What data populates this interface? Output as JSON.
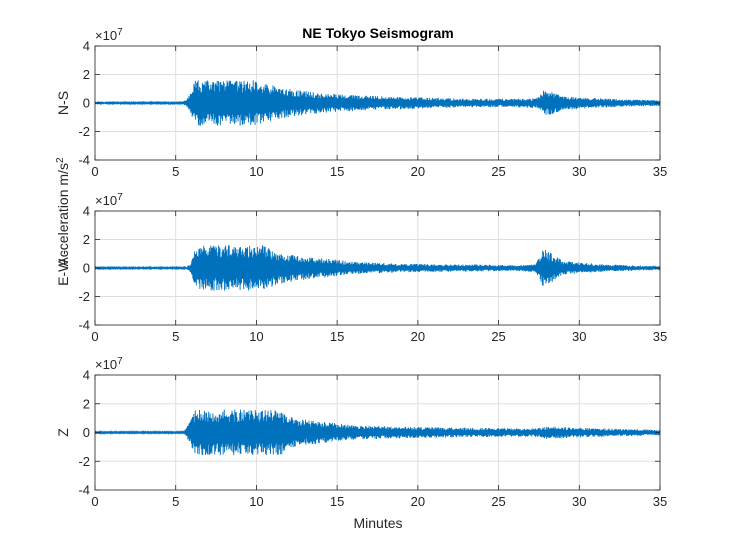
{
  "chart_data": {
    "type": "line",
    "title": "NE Tokyo Seismogram",
    "xlabel": "Minutes",
    "shared_ylabel": "Acceleration  m/s²",
    "xlim": [
      0,
      35
    ],
    "ylim": [
      -4,
      4
    ],
    "xticks": [
      0,
      5,
      10,
      15,
      20,
      25,
      30,
      35
    ],
    "yticks": [
      -4,
      -2,
      0,
      2,
      4
    ],
    "y_exponent": "×10",
    "y_exponent_power": "7",
    "grid": true,
    "line_color": "#0072BD",
    "series": [
      {
        "name": "N-S",
        "ylabel": "N-S",
        "envelope": [
          [
            0,
            0.05
          ],
          [
            5.4,
            0.05
          ],
          [
            5.6,
            0.2
          ],
          [
            5.9,
            0.7
          ],
          [
            6.2,
            1.6
          ],
          [
            9.8,
            1.6
          ],
          [
            10.8,
            1.3
          ],
          [
            12,
            1.0
          ],
          [
            14,
            0.7
          ],
          [
            17,
            0.5
          ],
          [
            20,
            0.4
          ],
          [
            23,
            0.3
          ],
          [
            26,
            0.3
          ],
          [
            27.4,
            0.35
          ],
          [
            27.8,
            0.9
          ],
          [
            28.3,
            0.8
          ],
          [
            29,
            0.5
          ],
          [
            31,
            0.35
          ],
          [
            33,
            0.25
          ],
          [
            35,
            0.2
          ]
        ]
      },
      {
        "name": "E-W",
        "ylabel": "E-W  -",
        "envelope": [
          [
            0,
            0.05
          ],
          [
            5.6,
            0.05
          ],
          [
            5.9,
            0.3
          ],
          [
            6.2,
            1.4
          ],
          [
            6.5,
            1.6
          ],
          [
            10.5,
            1.6
          ],
          [
            11.2,
            1.2
          ],
          [
            12.5,
            0.9
          ],
          [
            14,
            0.7
          ],
          [
            16,
            0.45
          ],
          [
            19,
            0.3
          ],
          [
            23,
            0.25
          ],
          [
            26,
            0.2
          ],
          [
            27.3,
            0.3
          ],
          [
            27.8,
            1.4
          ],
          [
            28.3,
            1.0
          ],
          [
            29,
            0.5
          ],
          [
            31,
            0.3
          ],
          [
            33,
            0.2
          ],
          [
            35,
            0.15
          ]
        ]
      },
      {
        "name": "Z",
        "ylabel": "Z",
        "envelope": [
          [
            0,
            0.05
          ],
          [
            5.4,
            0.05
          ],
          [
            5.6,
            0.2
          ],
          [
            5.9,
            0.8
          ],
          [
            6.2,
            1.6
          ],
          [
            11.5,
            1.6
          ],
          [
            12,
            1.1
          ],
          [
            13,
            0.9
          ],
          [
            14.5,
            0.7
          ],
          [
            16,
            0.5
          ],
          [
            19,
            0.4
          ],
          [
            22,
            0.35
          ],
          [
            25,
            0.3
          ],
          [
            27.5,
            0.3
          ],
          [
            28,
            0.45
          ],
          [
            29,
            0.4
          ],
          [
            31,
            0.3
          ],
          [
            33,
            0.25
          ],
          [
            35,
            0.2
          ]
        ]
      }
    ]
  }
}
